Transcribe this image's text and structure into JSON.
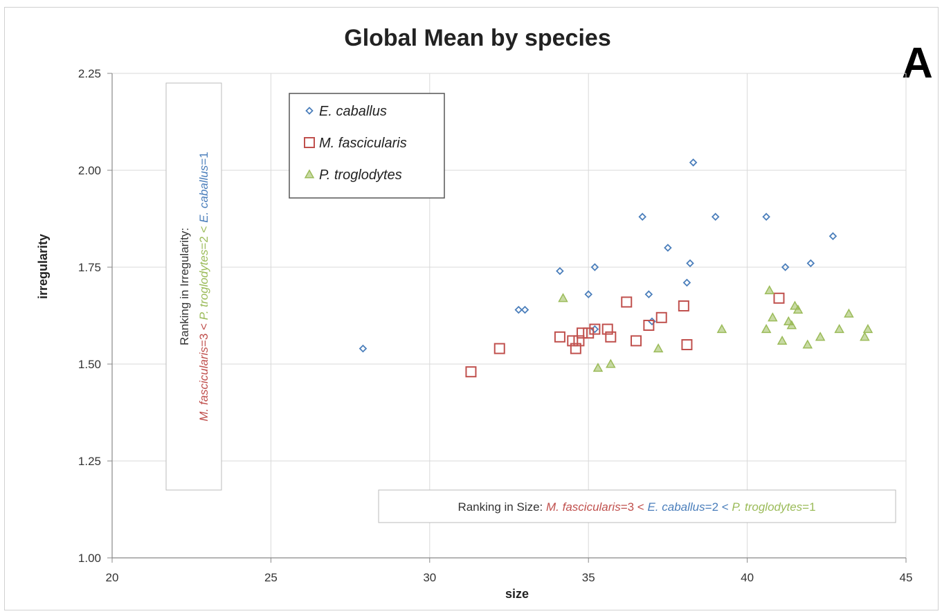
{
  "panel_label": "A",
  "colors": {
    "E. caballus": "#4a7ebb",
    "M. fascicularis": "#c0504d",
    "P. troglodytes": "#9bbb59"
  },
  "chart_data": {
    "type": "scatter",
    "title": "Global Mean by species",
    "xlabel": "size",
    "ylabel": "irregularity",
    "xlim": [
      20,
      45
    ],
    "ylim": [
      1.0,
      2.25
    ],
    "xticks": [
      "20",
      "25",
      "30",
      "35",
      "40",
      "45"
    ],
    "yticks": [
      "1.00",
      "1.25",
      "1.50",
      "1.75",
      "2.00",
      "2.25"
    ],
    "grid": true,
    "legend_position": "top-left",
    "series": [
      {
        "name": "E. caballus",
        "marker": "diamond",
        "points": [
          [
            27.9,
            1.54
          ],
          [
            32.8,
            1.64
          ],
          [
            33.0,
            1.64
          ],
          [
            34.1,
            1.74
          ],
          [
            35.0,
            1.68
          ],
          [
            35.2,
            1.75
          ],
          [
            35.2,
            1.59
          ],
          [
            36.7,
            1.88
          ],
          [
            36.9,
            1.68
          ],
          [
            37.0,
            1.61
          ],
          [
            37.5,
            1.8
          ],
          [
            38.1,
            1.71
          ],
          [
            38.2,
            1.76
          ],
          [
            38.3,
            2.02
          ],
          [
            39.0,
            1.88
          ],
          [
            40.6,
            1.88
          ],
          [
            41.2,
            1.75
          ],
          [
            42.0,
            1.76
          ],
          [
            42.7,
            1.83
          ]
        ]
      },
      {
        "name": "M. fascicularis",
        "marker": "square",
        "points": [
          [
            31.3,
            1.48
          ],
          [
            32.2,
            1.54
          ],
          [
            34.1,
            1.57
          ],
          [
            34.5,
            1.56
          ],
          [
            34.6,
            1.54
          ],
          [
            34.7,
            1.56
          ],
          [
            34.8,
            1.58
          ],
          [
            35.0,
            1.58
          ],
          [
            35.2,
            1.59
          ],
          [
            35.6,
            1.59
          ],
          [
            35.7,
            1.57
          ],
          [
            36.2,
            1.66
          ],
          [
            36.5,
            1.56
          ],
          [
            36.9,
            1.6
          ],
          [
            37.3,
            1.62
          ],
          [
            38.0,
            1.65
          ],
          [
            38.1,
            1.55
          ],
          [
            41.0,
            1.67
          ]
        ]
      },
      {
        "name": "P. troglodytes",
        "marker": "triangle",
        "points": [
          [
            34.2,
            1.67
          ],
          [
            35.3,
            1.49
          ],
          [
            35.7,
            1.5
          ],
          [
            37.2,
            1.54
          ],
          [
            39.2,
            1.59
          ],
          [
            40.6,
            1.59
          ],
          [
            40.7,
            1.69
          ],
          [
            40.8,
            1.62
          ],
          [
            41.1,
            1.56
          ],
          [
            41.3,
            1.61
          ],
          [
            41.4,
            1.6
          ],
          [
            41.5,
            1.65
          ],
          [
            41.6,
            1.64
          ],
          [
            41.9,
            1.55
          ],
          [
            42.3,
            1.57
          ],
          [
            42.9,
            1.59
          ],
          [
            43.2,
            1.63
          ],
          [
            43.7,
            1.57
          ],
          [
            43.8,
            1.59
          ]
        ]
      }
    ],
    "annotations": {
      "irregularity_ranking": {
        "line1": "Ranking in Irregularity:",
        "segments": [
          {
            "text": "M. fascicularis",
            "species": "M. fascicularis",
            "italic": true
          },
          {
            "text": "=3 < ",
            "species": "M. fascicularis",
            "italic": false
          },
          {
            "text": "P. troglodytes",
            "species": "P. troglodytes",
            "italic": true
          },
          {
            "text": "=2 < ",
            "species": "P. troglodytes",
            "italic": false
          },
          {
            "text": "E. caballus",
            "species": "E. caballus",
            "italic": true
          },
          {
            "text": "=1",
            "species": "E. caballus",
            "italic": false
          }
        ]
      },
      "size_ranking": {
        "prefix": "Ranking in Size: ",
        "segments": [
          {
            "text": "M. fascicularis",
            "species": "M. fascicularis",
            "italic": true
          },
          {
            "text": "=3 < ",
            "species": "M. fascicularis",
            "italic": false
          },
          {
            "text": "E. caballus",
            "species": "E. caballus",
            "italic": true
          },
          {
            "text": "=2 < ",
            "species": "E. caballus",
            "italic": false
          },
          {
            "text": "P. troglodytes",
            "species": "P. troglodytes",
            "italic": true
          },
          {
            "text": "=1",
            "species": "P. troglodytes",
            "italic": false
          }
        ]
      }
    }
  }
}
